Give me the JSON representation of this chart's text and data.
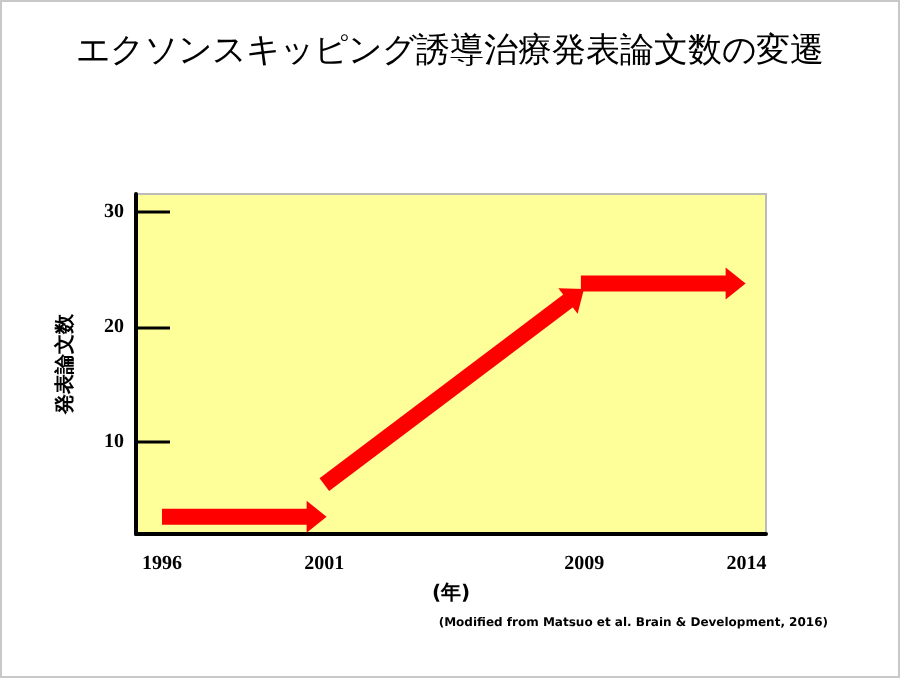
{
  "chart_data": {
    "type": "line",
    "title": "エクソンスキッピング誘導治療発表論文数の変遷",
    "xlabel": "(年)",
    "ylabel": "発表論文数",
    "annotations": [
      "(Modified from Matsuo et al. Brain & Development, 2016)"
    ],
    "series": [
      {
        "color": "#ff0000",
        "x": [
          1996,
          2000.7
        ],
        "values": [
          3.5,
          3.5
        ]
      },
      {
        "color": "#ff0000",
        "x": [
          2001,
          2008.7
        ],
        "values": [
          6.3,
          22.7
        ]
      },
      {
        "color": "#ff0000",
        "x": [
          2008.9,
          2013.6
        ],
        "values": [
          23.8,
          23.8
        ]
      }
    ],
    "xlim": [
      1995.2,
      2014.6
    ],
    "xticks": [
      1996,
      2001,
      2009,
      2014
    ],
    "ylim": [
      2,
      31.6
    ],
    "yticks": [
      10,
      20,
      30
    ],
    "grid": false,
    "line_style": "solid"
  }
}
